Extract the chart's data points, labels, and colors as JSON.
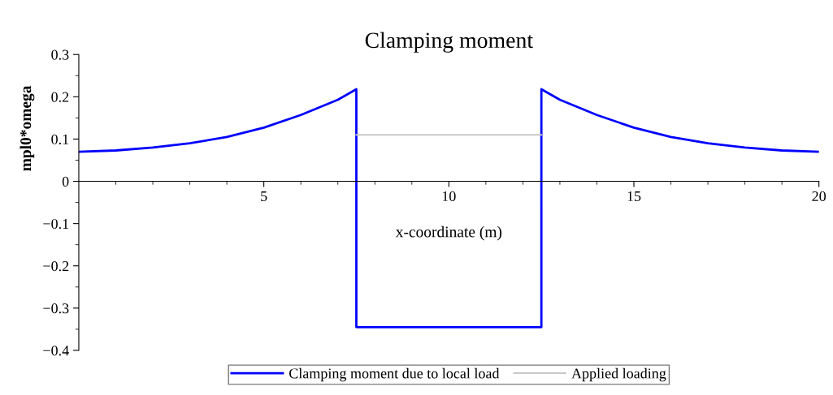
{
  "chart_data": {
    "type": "line",
    "title": "Clamping moment",
    "xlabel": "x-coordinate (m)",
    "ylabel": "mpl0*omega",
    "xlim": [
      0,
      20
    ],
    "ylim": [
      -0.4,
      0.3
    ],
    "xticks": [
      {
        "value": 1,
        "label": null
      },
      {
        "value": 2,
        "label": null
      },
      {
        "value": 3,
        "label": null
      },
      {
        "value": 4,
        "label": null
      },
      5,
      {
        "value": 6,
        "label": null
      },
      {
        "value": 7,
        "label": null
      },
      {
        "value": 8,
        "label": null
      },
      {
        "value": 9,
        "label": null
      },
      10,
      {
        "value": 11,
        "label": null
      },
      {
        "value": 12,
        "label": null
      },
      {
        "value": 13,
        "label": null
      },
      {
        "value": 14,
        "label": null
      },
      15,
      {
        "value": 16,
        "label": null
      },
      {
        "value": 17,
        "label": null
      },
      {
        "value": 18,
        "label": null
      },
      {
        "value": 19,
        "label": null
      },
      20
    ],
    "yticks": [
      -0.4,
      {
        "value": -0.35,
        "label": null
      },
      -0.3,
      {
        "value": -0.25,
        "label": null
      },
      -0.2,
      {
        "value": -0.15,
        "label": null
      },
      -0.1,
      {
        "value": -0.05,
        "label": null
      },
      0,
      {
        "value": 0.05,
        "label": null
      },
      0.1,
      {
        "value": 0.15,
        "label": null
      },
      0.2,
      {
        "value": 0.25,
        "label": null
      },
      0.3
    ],
    "legend": "bottom",
    "grid": false,
    "marker": "none",
    "line_style": "solid",
    "series": [
      {
        "name": "Clamping moment due to local load",
        "color": "#0000ff",
        "x": [
          0,
          1,
          2,
          3,
          4,
          5,
          6,
          7,
          7.5,
          7.5,
          12.5,
          12.5,
          13,
          14,
          15,
          16,
          17,
          18,
          19,
          20
        ],
        "values": [
          0.07,
          0.073,
          0.08,
          0.09,
          0.105,
          0.127,
          0.157,
          0.193,
          0.218,
          -0.345,
          -0.345,
          0.218,
          0.193,
          0.157,
          0.127,
          0.105,
          0.09,
          0.08,
          0.073,
          0.07
        ]
      },
      {
        "name": "Applied loading",
        "color": "#c8c8c8",
        "x": [
          7.5,
          12.5
        ],
        "values": [
          0.11,
          0.11
        ]
      }
    ]
  }
}
